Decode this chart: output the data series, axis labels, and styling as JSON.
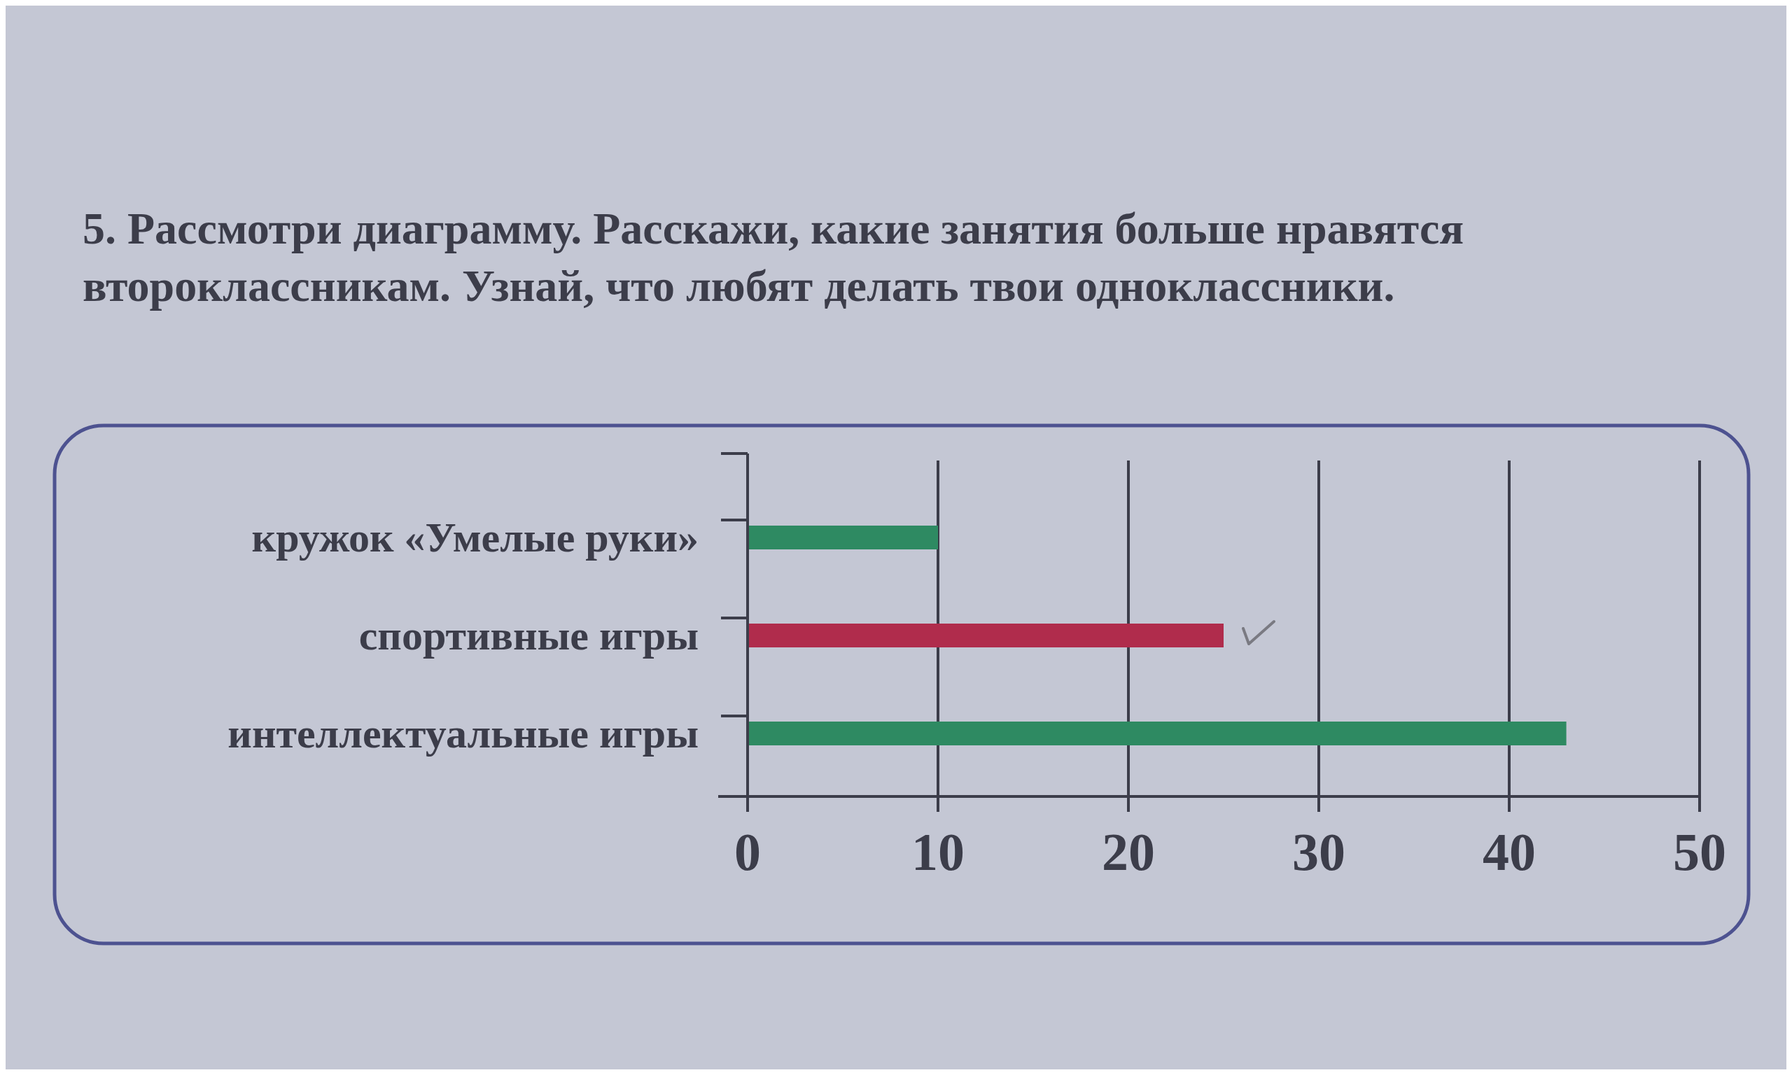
{
  "chart_data": {
    "type": "bar",
    "orientation": "horizontal",
    "title": "5. Рассмотри диаграмму. Расскажи, какие занятия больше нравятся второклассникам. Узнай, что любят делать твои одноклассники.",
    "categories": [
      "кружок «Умелые руки»",
      "спортивные игры",
      "интеллектуальные игры"
    ],
    "values": [
      10,
      25,
      43
    ],
    "colors": [
      "#2e8a62",
      "#b02c4c",
      "#2e8a62"
    ],
    "xlim": [
      0,
      50
    ],
    "xticks": [
      0,
      10,
      20,
      30,
      40,
      50
    ],
    "grid": "x"
  }
}
